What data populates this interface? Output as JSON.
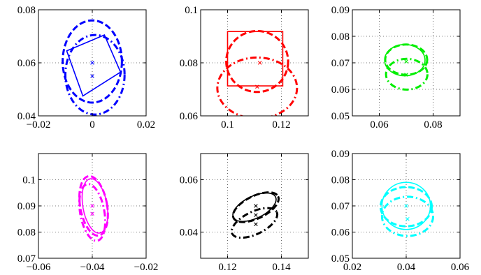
{
  "chart_data": [
    {
      "type": "scatter",
      "color": "#0000ff",
      "xlim": [
        -0.02,
        0.02
      ],
      "ylim": [
        0.04,
        0.08
      ],
      "xticks": [
        -0.02,
        0,
        0.02
      ],
      "xtick_labels": [
        "−0.02",
        "0",
        "0.02"
      ],
      "yticks": [
        0.04,
        0.06,
        0.08
      ],
      "ytick_labels": [
        "0.04",
        "0.06",
        "0.08"
      ],
      "grid": true,
      "points": [
        [
          0,
          0.06
        ],
        [
          0,
          0.055
        ]
      ],
      "ellipses": [
        {
          "style": "dashed",
          "cx": 0,
          "cy": 0.0605,
          "rx": 0.011,
          "ry": 0.0155,
          "angle": 0
        },
        {
          "style": "dashdot",
          "cx": 0.001,
          "cy": 0.0555,
          "rx": 0.011,
          "ry": 0.015,
          "angle": 0
        }
      ],
      "polygons": [
        {
          "style": "solid",
          "points": [
            [
              -0.0095,
              0.0645
            ],
            [
              0.0045,
              0.0705
            ],
            [
              0.0105,
              0.0565
            ],
            [
              -0.0035,
              0.0475
            ]
          ]
        }
      ]
    },
    {
      "type": "scatter",
      "color": "#ff0000",
      "xlim": [
        0.09,
        0.13
      ],
      "ylim": [
        0.06,
        0.1
      ],
      "xticks": [
        0.1,
        0.12
      ],
      "xtick_labels": [
        "0.1",
        "0.12"
      ],
      "yticks": [
        0.06,
        0.08,
        0.1
      ],
      "ytick_labels": [
        "0.06",
        "0.08",
        "0.1"
      ],
      "grid": true,
      "points": [
        [
          0.112,
          0.08
        ],
        [
          0.111,
          0.071
        ]
      ],
      "ellipses": [
        {
          "style": "dashed",
          "cx": 0.111,
          "cy": 0.0805,
          "rx": 0.0115,
          "ry": 0.0115,
          "angle": 0
        },
        {
          "style": "dashdot",
          "cx": 0.111,
          "cy": 0.0705,
          "rx": 0.0148,
          "ry": 0.0115,
          "angle": 0
        }
      ],
      "polygons": [
        {
          "style": "solid",
          "points": [
            [
              0.1,
              0.0918
            ],
            [
              0.1205,
              0.0918
            ],
            [
              0.1205,
              0.0713
            ],
            [
              0.1,
              0.0713
            ]
          ]
        }
      ]
    },
    {
      "type": "scatter",
      "color": "#00ee00",
      "xlim": [
        0.05,
        0.09
      ],
      "ylim": [
        0.05,
        0.09
      ],
      "xticks": [
        0.06,
        0.08
      ],
      "xtick_labels": [
        "0.06",
        "0.08"
      ],
      "yticks": [
        0.05,
        0.06,
        0.07,
        0.08,
        0.09
      ],
      "ytick_labels": [
        "0.05",
        "0.06",
        "0.07",
        "0.08",
        "0.09"
      ],
      "grid": true,
      "points": [
        [
          0.07,
          0.0705
        ],
        [
          0.07,
          0.0655
        ]
      ],
      "ellipses": [
        {
          "style": "solid",
          "cx": 0.0695,
          "cy": 0.071,
          "rx": 0.0075,
          "ry": 0.0059,
          "angle": 0
        },
        {
          "style": "dashed",
          "cx": 0.07,
          "cy": 0.0712,
          "rx": 0.0078,
          "ry": 0.0057,
          "angle": 0
        },
        {
          "style": "dashdot",
          "cx": 0.0702,
          "cy": 0.0657,
          "rx": 0.0077,
          "ry": 0.0058,
          "angle": 0
        }
      ],
      "polygons": []
    },
    {
      "type": "scatter",
      "color": "#ff00ff",
      "xlim": [
        -0.06,
        -0.02
      ],
      "ylim": [
        0.07,
        0.11
      ],
      "xticks": [
        -0.06,
        -0.04,
        -0.02
      ],
      "xtick_labels": [
        "−0.06",
        "−0.04",
        "−0.02"
      ],
      "yticks": [
        0.07,
        0.08,
        0.09,
        0.1
      ],
      "ytick_labels": [
        "0.07",
        "0.08",
        "0.09",
        "0.1"
      ],
      "grid": true,
      "points": [
        [
          -0.04,
          0.09
        ],
        [
          -0.04,
          0.087
        ]
      ],
      "ellipses": [
        {
          "style": "solid",
          "cx": -0.039,
          "cy": 0.09,
          "rx": 0.0045,
          "ry": 0.0105,
          "angle": -10
        },
        {
          "style": "dashed",
          "cx": -0.0395,
          "cy": 0.09,
          "rx": 0.005,
          "ry": 0.0115,
          "angle": -10
        },
        {
          "style": "dashdot",
          "cx": -0.04,
          "cy": 0.0875,
          "rx": 0.0045,
          "ry": 0.011,
          "angle": -10
        }
      ],
      "polygons": []
    },
    {
      "type": "scatter",
      "color": "#000000",
      "xlim": [
        0.11,
        0.15
      ],
      "ylim": [
        0.03,
        0.07
      ],
      "xticks": [
        0.12,
        0.14
      ],
      "xtick_labels": [
        "0.12",
        "0.14"
      ],
      "yticks": [
        0.04,
        0.06
      ],
      "ytick_labels": [
        "0.04",
        "0.06"
      ],
      "grid": true,
      "points": [
        [
          0.1305,
          0.05
        ],
        [
          0.1305,
          0.0465
        ],
        [
          0.1305,
          0.043
        ]
      ],
      "ellipses": [
        {
          "style": "solid",
          "cx": 0.13,
          "cy": 0.0495,
          "rx": 0.0087,
          "ry": 0.0042,
          "angle": -26
        },
        {
          "style": "dashed",
          "cx": 0.1305,
          "cy": 0.0495,
          "rx": 0.0092,
          "ry": 0.0043,
          "angle": -26
        },
        {
          "style": "dashdot",
          "cx": 0.13,
          "cy": 0.0435,
          "rx": 0.0092,
          "ry": 0.0043,
          "angle": -26
        }
      ],
      "polygons": []
    },
    {
      "type": "scatter",
      "color": "#00ffff",
      "xlim": [
        0.02,
        0.06
      ],
      "ylim": [
        0.05,
        0.09
      ],
      "xticks": [
        0.02,
        0.04,
        0.06
      ],
      "xtick_labels": [
        "0.02",
        "0.04",
        "0.06"
      ],
      "yticks": [
        0.05,
        0.06,
        0.07,
        0.08,
        0.09
      ],
      "ytick_labels": [
        "0.05",
        "0.06",
        "0.07",
        "0.08",
        "0.09"
      ],
      "grid": true,
      "points": [
        [
          0.04,
          0.07
        ],
        [
          0.0405,
          0.065
        ]
      ],
      "ellipses": [
        {
          "style": "solid",
          "cx": 0.04,
          "cy": 0.07,
          "rx": 0.009,
          "ry": 0.009,
          "angle": 0
        },
        {
          "style": "dashed",
          "cx": 0.04,
          "cy": 0.0697,
          "rx": 0.0095,
          "ry": 0.0075,
          "angle": 0
        },
        {
          "style": "dashdot",
          "cx": 0.0405,
          "cy": 0.066,
          "rx": 0.0095,
          "ry": 0.0075,
          "angle": 0
        }
      ],
      "polygons": []
    }
  ]
}
